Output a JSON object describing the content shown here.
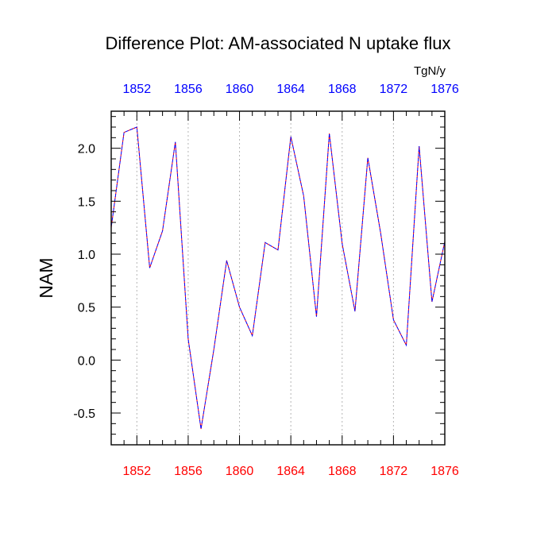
{
  "chart_data": {
    "type": "line",
    "title": "Difference Plot: AM-associated N uptake flux",
    "units": "TgN/y",
    "ylabel": "NAM",
    "xlabel": "",
    "xlim": [
      1850,
      1876
    ],
    "ylim": [
      -0.8,
      2.35
    ],
    "x_ticks_bottom": [
      "1852",
      "1856",
      "1860",
      "1864",
      "1868",
      "1872",
      "1876"
    ],
    "x_ticks_top": [
      "1852",
      "1856",
      "1860",
      "1864",
      "1868",
      "1872",
      "1876"
    ],
    "y_ticks": [
      "-0.5",
      "0.0",
      "0.5",
      "1.0",
      "1.5",
      "2.0"
    ],
    "grid": "vertical dotted at major x ticks",
    "colors": {
      "bottom_tick_labels": "#ff0000",
      "top_tick_labels": "#0000ff",
      "line_primary": "#0000ff",
      "line_secondary": "#ff0000"
    },
    "x": [
      1850,
      1851,
      1852,
      1853,
      1854,
      1855,
      1856,
      1857,
      1858,
      1859,
      1860,
      1861,
      1862,
      1863,
      1864,
      1865,
      1866,
      1867,
      1868,
      1869,
      1870,
      1871,
      1872,
      1873,
      1874,
      1875,
      1876
    ],
    "series": [
      {
        "values": [
          1.25,
          2.15,
          2.2,
          0.87,
          1.22,
          2.06,
          0.2,
          -0.65,
          0.1,
          0.94,
          0.5,
          0.23,
          1.11,
          1.04,
          2.11,
          1.55,
          0.41,
          2.14,
          1.1,
          0.46,
          1.91,
          1.2,
          0.38,
          0.14,
          2.02,
          0.55,
          1.12
        ]
      }
    ]
  }
}
